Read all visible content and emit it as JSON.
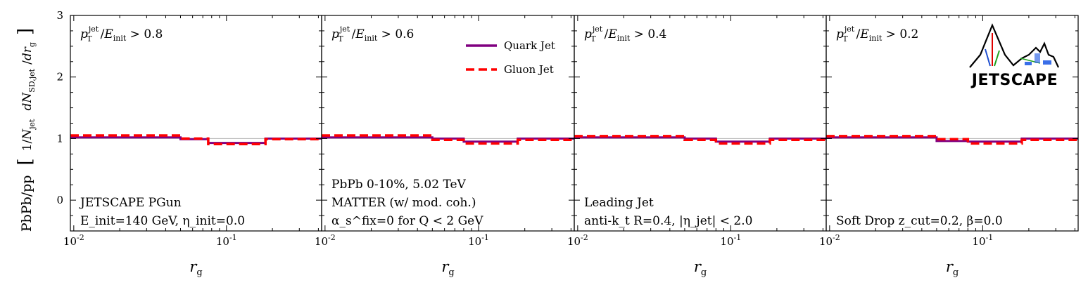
{
  "chart_data": {
    "type": "line",
    "y_label_text": "PbPb/pp [ 1/N_jet dN_SD,jet/dr_g ]",
    "ylim": [
      -0.5,
      3.0
    ],
    "yticks": [
      "0",
      "1",
      "2",
      "3"
    ],
    "xscale": "log",
    "xlim": [
      0.0095,
      0.42
    ],
    "xticks": [
      "10^-2",
      "10^-1"
    ],
    "x_label": "r_g",
    "reference_line": 1.0,
    "legend": {
      "position": "top-right of second panel",
      "entries": [
        "Quark Jet",
        "Gluon Jet"
      ]
    },
    "colors": {
      "quark": "#800080",
      "gluon": "#ff0000",
      "reference": "#b0b0b0"
    },
    "logo_text": "JETSCAPE",
    "panels": [
      {
        "cut_label": "p_T^jet / E_init > 0.8",
        "cut_value": "0.8",
        "notes": [
          "JETSCAPE PGun",
          "E_init=140 GeV, η_init=0.0"
        ],
        "bin_edges": [
          0.0095,
          0.05,
          0.076,
          0.18,
          0.42
        ],
        "series": [
          {
            "name": "Quark Jet",
            "values": [
              1.02,
              0.99,
              0.93,
              1.0
            ]
          },
          {
            "name": "Gluon Jet",
            "values": [
              1.05,
              1.0,
              0.91,
              0.99
            ]
          }
        ]
      },
      {
        "cut_label": "p_T^jet / E_init > 0.6",
        "cut_value": "0.6",
        "notes": [
          "PbPb 0-10%, 5.02 TeV",
          "MATTER (w/ mod. coh.)",
          "α_s^fix=0 for Q < 2 GeV"
        ],
        "bin_edges": [
          0.0095,
          0.05,
          0.08,
          0.18,
          0.42
        ],
        "series": [
          {
            "name": "Quark Jet",
            "values": [
              1.02,
              1.0,
              0.95,
              1.0
            ]
          },
          {
            "name": "Gluon Jet",
            "values": [
              1.05,
              0.98,
              0.92,
              0.98
            ]
          }
        ]
      },
      {
        "cut_label": "p_T^jet / E_init > 0.4",
        "cut_value": "0.4",
        "notes": [
          "Leading Jet",
          "anti-k_t R=0.4, |η_jet| < 2.0"
        ],
        "bin_edges": [
          0.0095,
          0.05,
          0.08,
          0.18,
          0.42
        ],
        "series": [
          {
            "name": "Quark Jet",
            "values": [
              1.02,
              1.0,
              0.95,
              1.0
            ]
          },
          {
            "name": "Gluon Jet",
            "values": [
              1.04,
              0.98,
              0.92,
              0.98
            ]
          }
        ]
      },
      {
        "cut_label": "p_T^jet / E_init > 0.2",
        "cut_value": "0.2",
        "notes": [
          "Soft Drop z_cut=0.2, β=0.0"
        ],
        "bin_edges": [
          0.0095,
          0.05,
          0.08,
          0.18,
          0.42
        ],
        "series": [
          {
            "name": "Quark Jet",
            "values": [
              1.02,
              0.96,
              0.95,
              1.0
            ]
          },
          {
            "name": "Gluon Jet",
            "values": [
              1.04,
              0.99,
              0.92,
              0.98
            ]
          }
        ]
      }
    ]
  }
}
